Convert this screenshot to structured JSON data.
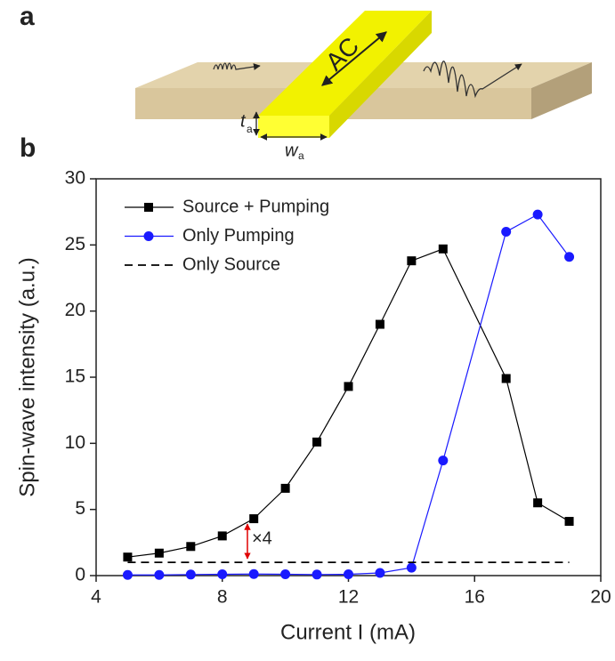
{
  "panel_labels": {
    "a": "a",
    "b": "b"
  },
  "diagram": {
    "ac": "AC",
    "t": "t",
    "t_sub": "a",
    "w": "w",
    "w_sub": "a"
  },
  "chart_data": {
    "type": "line",
    "xlabel": "Current I (mA)",
    "ylabel": "Spin-wave intensity (a.u.)",
    "xlim": [
      4,
      20
    ],
    "xticks": [
      4,
      8,
      12,
      16,
      20
    ],
    "ylim": [
      0,
      30
    ],
    "yticks": [
      0,
      5,
      10,
      15,
      20,
      25,
      30
    ],
    "legend": "upper left",
    "annotation": "×4",
    "series": [
      {
        "name": "Source + Pumping",
        "color": "#000000",
        "marker": "square",
        "line_style": "solid",
        "x": [
          5,
          6,
          7,
          8,
          9,
          10,
          11,
          12,
          13,
          14,
          15,
          17,
          18,
          19
        ],
        "values": [
          1.4,
          1.7,
          2.2,
          3.0,
          4.3,
          6.6,
          10.1,
          14.3,
          19.0,
          23.8,
          24.7,
          14.9,
          5.5,
          4.1
        ]
      },
      {
        "name": "Only Pumping",
        "color": "#1a1aff",
        "marker": "circle",
        "line_style": "solid",
        "x": [
          5,
          6,
          7,
          8,
          9,
          10,
          11,
          12,
          13,
          14,
          15,
          17,
          18,
          19
        ],
        "values": [
          0.05,
          0.05,
          0.08,
          0.1,
          0.12,
          0.1,
          0.08,
          0.1,
          0.2,
          0.6,
          8.7,
          26.0,
          27.3,
          24.1
        ]
      },
      {
        "name": "Only Source",
        "color": "#000000",
        "marker": "none",
        "line_style": "dashed",
        "x": [
          5,
          19
        ],
        "values": [
          1.0,
          1.0
        ]
      }
    ]
  }
}
